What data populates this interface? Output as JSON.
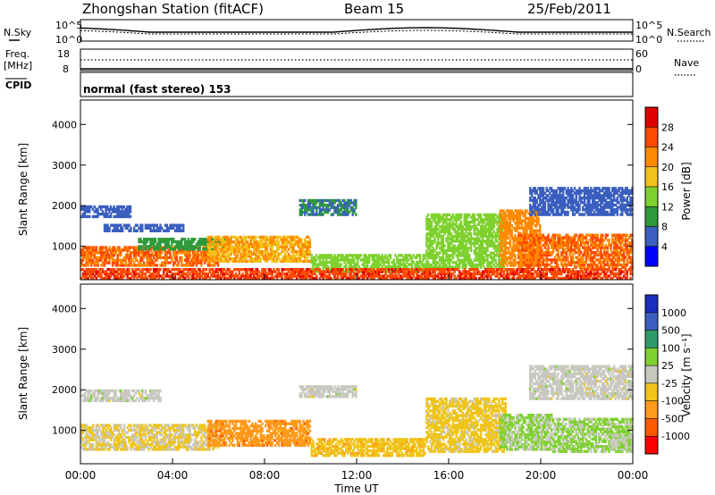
{
  "header": {
    "title": "Zhongshan Station (fitACF)",
    "beam": "Beam 15",
    "date": "25/Feb/2011"
  },
  "top_panels": {
    "nsky_label": "N.Sky",
    "nsky_ticks": [
      "10^5",
      "10^0"
    ],
    "nsearch_label": "N.Search",
    "nsearch_ticks": [
      "10^5",
      "10^0"
    ],
    "freq_label": "Freq.",
    "freq_unit": "[MHz]",
    "freq_ticks": [
      "18",
      "8"
    ],
    "nave_label": "Nave",
    "nave_ticks": [
      "60",
      "0"
    ],
    "cpid_label": "CPID",
    "cpid_value": "normal (fast stereo) 153"
  },
  "chart_data": [
    {
      "type": "heatmap",
      "title": "",
      "ylabel": "Slant Range [km]",
      "xlabel": "",
      "ylim": [
        180,
        4600
      ],
      "xlim": [
        "00:00",
        "24:00"
      ],
      "y_ticks": [
        "4000",
        "3000",
        "2000",
        "1000"
      ],
      "colorbar": {
        "label": "Power [dB]",
        "ticks": [
          "28",
          "24",
          "20",
          "16",
          "12",
          "8",
          "4"
        ],
        "colors": [
          "#0000ff",
          "#3a5fbf",
          "#2f9a3a",
          "#7fd12f",
          "#f0c419",
          "#ff8a00",
          "#ff4a00",
          "#e00000"
        ],
        "range": [
          0,
          32
        ]
      },
      "bands": [
        {
          "t0": 0.0,
          "t1": 6.0,
          "r0": 500,
          "r1": 1000,
          "level": 24
        },
        {
          "t0": 0.0,
          "t1": 2.2,
          "r0": 1700,
          "r1": 2000,
          "level": 6
        },
        {
          "t0": 1.0,
          "t1": 4.5,
          "r0": 1350,
          "r1": 1550,
          "level": 6
        },
        {
          "t0": 2.5,
          "t1": 6.5,
          "r0": 900,
          "r1": 1200,
          "level": 10
        },
        {
          "t0": 5.5,
          "t1": 10.0,
          "r0": 600,
          "r1": 1250,
          "level": 20
        },
        {
          "t0": 10.0,
          "t1": 15.0,
          "r0": 350,
          "r1": 800,
          "level": 14
        },
        {
          "t0": 9.5,
          "t1": 12.0,
          "r0": 1750,
          "r1": 2150,
          "level": 8
        },
        {
          "t0": 15.0,
          "t1": 18.5,
          "r0": 450,
          "r1": 1800,
          "level": 14
        },
        {
          "t0": 18.2,
          "t1": 20.0,
          "r0": 500,
          "r1": 1900,
          "level": 22
        },
        {
          "t0": 19.0,
          "t1": 24.0,
          "r0": 450,
          "r1": 1300,
          "level": 24
        },
        {
          "t0": 19.5,
          "t1": 24.0,
          "r0": 1750,
          "r1": 2450,
          "level": 6
        },
        {
          "t0": 0.0,
          "t1": 24.0,
          "r0": 180,
          "r1": 450,
          "level": 27
        }
      ]
    },
    {
      "type": "heatmap",
      "title": "",
      "ylabel": "Slant Range [km]",
      "xlabel": "Time UT",
      "ylim": [
        180,
        4600
      ],
      "xlim": [
        "00:00",
        "24:00"
      ],
      "y_ticks": [
        "4000",
        "3000",
        "2000",
        "1000"
      ],
      "x_ticks": [
        "00:00",
        "04:00",
        "08:00",
        "12:00",
        "16:00",
        "20:00",
        "00:00"
      ],
      "colorbar": {
        "label": "Velocity [m s⁻¹]",
        "ticks": [
          "1000",
          "500",
          "100",
          "25",
          "-25",
          "-100",
          "-500",
          "-1000"
        ],
        "colors": [
          "#ff0000",
          "#ff5a00",
          "#ff9a1a",
          "#f0c419",
          "#c8c8c0",
          "#7fd12f",
          "#2f9a6a",
          "#3a5fbf",
          "#1a2fbf"
        ],
        "range": [
          -1000,
          1000
        ]
      },
      "bands": [
        {
          "t0": 0.0,
          "t1": 6.0,
          "r0": 500,
          "r1": 1150,
          "level": -120
        },
        {
          "t0": 0.0,
          "t1": 3.5,
          "r0": 1700,
          "r1": 2000,
          "level": 0
        },
        {
          "t0": 5.5,
          "t1": 10.0,
          "r0": 600,
          "r1": 1250,
          "level": -450
        },
        {
          "t0": 10.0,
          "t1": 15.0,
          "r0": 350,
          "r1": 800,
          "level": -250
        },
        {
          "t0": 9.5,
          "t1": 12.0,
          "r0": 1800,
          "r1": 2100,
          "level": 0
        },
        {
          "t0": 15.0,
          "t1": 18.5,
          "r0": 450,
          "r1": 1800,
          "level": -200
        },
        {
          "t0": 18.2,
          "t1": 20.5,
          "r0": 500,
          "r1": 1400,
          "level": 150
        },
        {
          "t0": 20.5,
          "t1": 24.0,
          "r0": 450,
          "r1": 1300,
          "level": 150
        },
        {
          "t0": 19.5,
          "t1": 24.0,
          "r0": 1750,
          "r1": 2600,
          "level": 0
        },
        {
          "t0": 23.0,
          "t1": 24.0,
          "r0": 500,
          "r1": 900,
          "level": 60
        }
      ]
    }
  ]
}
